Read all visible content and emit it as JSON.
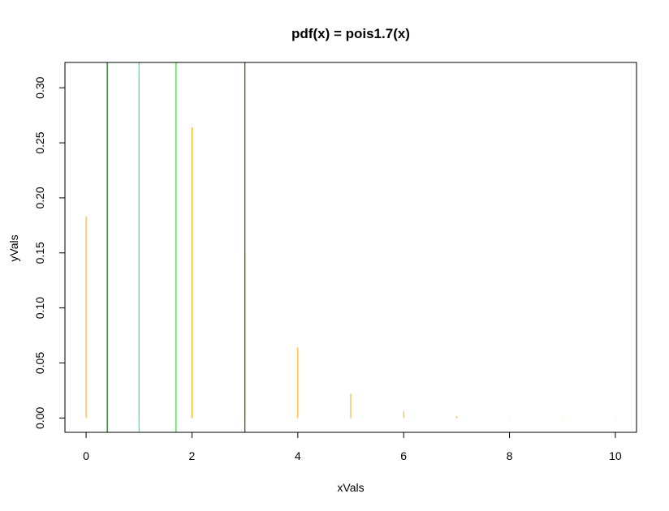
{
  "chart_data": {
    "type": "bar",
    "title": "pdf(x) = pois1.7(x)",
    "xlabel": "xVals",
    "ylabel": "yVals",
    "xlim": [
      -0.4,
      10.4
    ],
    "ylim": [
      -0.013,
      0.323
    ],
    "xticks": [
      0,
      2,
      4,
      6,
      8,
      10
    ],
    "xtick_labels": [
      "0",
      "2",
      "4",
      "6",
      "8",
      "10"
    ],
    "yticks": [
      0.0,
      0.05,
      0.1,
      0.15,
      0.2,
      0.25,
      0.3
    ],
    "ytick_labels": [
      "0.00",
      "0.05",
      "0.10",
      "0.15",
      "0.20",
      "0.25",
      "0.30"
    ],
    "grid": false,
    "legend": "none",
    "series": [
      {
        "color": "#ffa500",
        "x": [
          0,
          1,
          2,
          3,
          4,
          5,
          6,
          7,
          8,
          9,
          10
        ],
        "values": [
          0.183,
          0.311,
          0.264,
          0.15,
          0.064,
          0.022,
          0.006,
          0.0015,
          0.0003,
          6e-05,
          1e-05
        ]
      }
    ],
    "vertical_lines": [
      {
        "x": 0.4,
        "color": "#006400"
      },
      {
        "x": 1.0,
        "color": "#40e0d0"
      },
      {
        "x": 1.7,
        "color": "#32cd32"
      },
      {
        "x": 3.0,
        "color": "#006400"
      }
    ]
  }
}
